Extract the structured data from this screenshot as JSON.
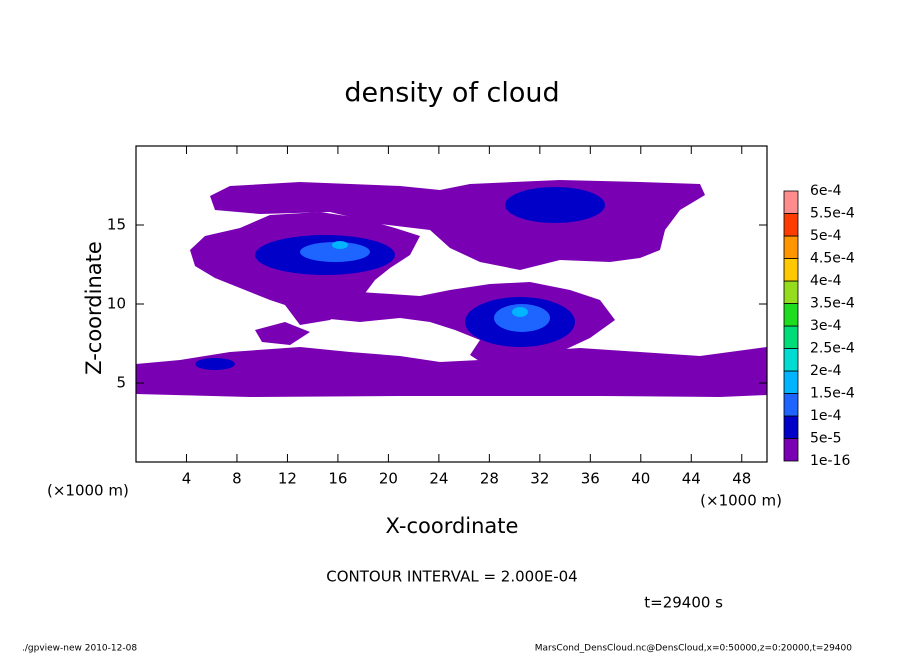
{
  "chart_data": {
    "type": "contour",
    "title": "density of cloud",
    "x_label": "X-coordinate",
    "y_label": "Z-coordinate",
    "x_units": "(×1000 m)",
    "contour_interval": "CONTOUR INTERVAL = 2.000E-04",
    "time_label": "t=29400 s",
    "footer_left": "./gpview-new   2010-12-08",
    "footer_right": "MarsCond_DensCloud.nc@DensCloud,x=0:50000,z=0:20000,t=29400",
    "xlim": [
      0,
      50
    ],
    "xticks": [
      4,
      8,
      12,
      16,
      20,
      24,
      28,
      32,
      36,
      40,
      44,
      48
    ],
    "ylim": [
      0,
      20
    ],
    "yticks": [
      5,
      10,
      15
    ],
    "colorbar": {
      "levels": [
        1e-16,
        {
          "value": 5e-05,
          "label": "5e-5"
        },
        {
          "value": 0.0001,
          "label": "1e-4"
        },
        {
          "value": 0.00015,
          "label": "1.5e-4"
        },
        {
          "value": 0.0002,
          "label": "2e-4"
        },
        {
          "value": 0.00025,
          "label": "2.5e-4"
        },
        {
          "value": 0.0003,
          "label": "3e-4"
        },
        {
          "value": 0.00035,
          "label": "3.5e-4"
        },
        {
          "value": 0.0004,
          "label": "4e-4"
        },
        {
          "value": 0.00045,
          "label": "4.5e-4"
        },
        {
          "value": 0.0005,
          "label": "5e-4"
        },
        {
          "value": 0.00055,
          "label": "5.5e-4"
        },
        {
          "value": 0.0006,
          "label": "6e-4"
        }
      ],
      "colors": [
        "#7a00b4",
        "#0000c8",
        "#1e64ff",
        "#00b4ff",
        "#00dcd2",
        "#00dc78",
        "#1edc1e",
        "#96dc1e",
        "#ffc800",
        "#ff9600",
        "#ff3c00",
        "#ff8c8c"
      ]
    }
  }
}
